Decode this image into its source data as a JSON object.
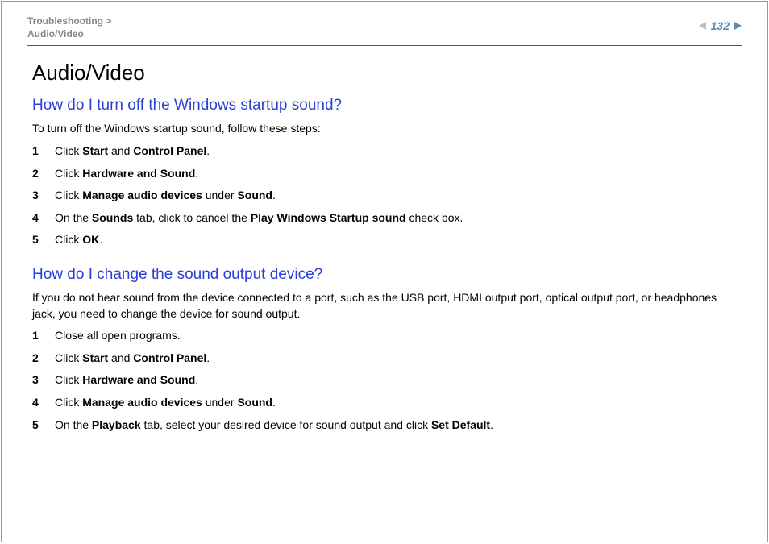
{
  "header": {
    "breadcrumb_line1": "Troubleshooting >",
    "breadcrumb_line2": "Audio/Video",
    "page_number": "132"
  },
  "title": "Audio/Video",
  "section1": {
    "heading": "How do I turn off the Windows startup sound?",
    "intro": "To turn off the Windows startup sound, follow these steps:",
    "steps": [
      {
        "num": "1",
        "parts": [
          "Click ",
          "Start",
          " and ",
          "Control Panel",
          "."
        ]
      },
      {
        "num": "2",
        "parts": [
          "Click ",
          "Hardware and Sound",
          "."
        ]
      },
      {
        "num": "3",
        "parts": [
          "Click ",
          "Manage audio devices",
          " under ",
          "Sound",
          "."
        ]
      },
      {
        "num": "4",
        "parts": [
          "On the ",
          "Sounds",
          " tab, click to cancel the ",
          "Play Windows Startup sound",
          " check box."
        ]
      },
      {
        "num": "5",
        "parts": [
          "Click ",
          "OK",
          "."
        ]
      }
    ]
  },
  "section2": {
    "heading": "How do I change the sound output device?",
    "intro": "If you do not hear sound from the device connected to a port, such as the USB port, HDMI output port, optical output port, or headphones jack, you need to change the device for sound output.",
    "steps": [
      {
        "num": "1",
        "parts": [
          "Close all open programs."
        ]
      },
      {
        "num": "2",
        "parts": [
          "Click ",
          "Start",
          " and ",
          "Control Panel",
          "."
        ]
      },
      {
        "num": "3",
        "parts": [
          "Click ",
          "Hardware and Sound",
          "."
        ]
      },
      {
        "num": "4",
        "parts": [
          "Click ",
          "Manage audio devices",
          " under ",
          "Sound",
          "."
        ]
      },
      {
        "num": "5",
        "parts": [
          "On the ",
          "Playback",
          " tab, select your desired device for sound output and click ",
          "Set Default",
          "."
        ]
      }
    ]
  },
  "colors": {
    "heading_blue": "#2a3fd6",
    "breadcrumb_gray": "#888888",
    "page_accent": "#5e8bb0",
    "arrow_gray": "#bdbdbd"
  },
  "fonts": {
    "title_size": 26,
    "section_size": 19,
    "body_size": 14,
    "breadcrumb_size": 12
  }
}
